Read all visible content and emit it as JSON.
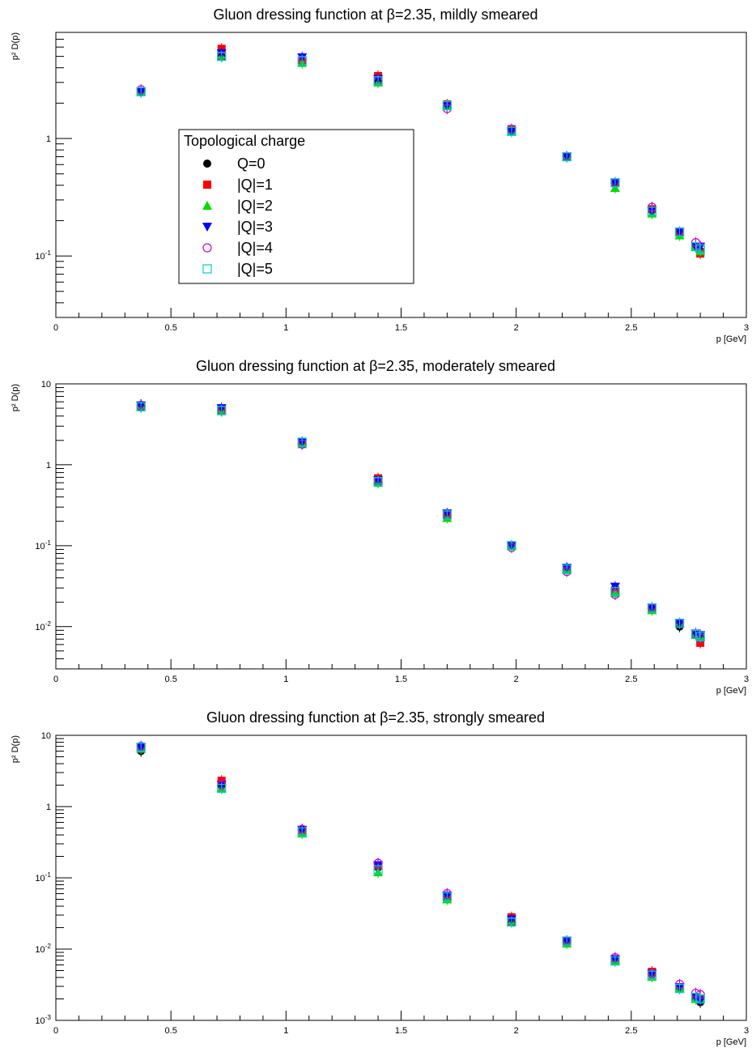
{
  "figure": {
    "series_styles": [
      {
        "name": "Q=0",
        "marker": "filled-circle",
        "color": "#000000"
      },
      {
        "name": "|Q|=1",
        "marker": "filled-square",
        "color": "#ff0000"
      },
      {
        "name": "|Q|=2",
        "marker": "filled-triangle-up",
        "color": "#00dd00"
      },
      {
        "name": "|Q|=3",
        "marker": "filled-triangle-down",
        "color": "#0000ff"
      },
      {
        "name": "|Q|=4",
        "marker": "open-circle",
        "color": "#cc00cc"
      },
      {
        "name": "|Q|=5",
        "marker": "open-square",
        "color": "#00cccc"
      }
    ],
    "legend": {
      "title": "Topological charge",
      "placement": "upper-left-center",
      "panel": 0
    }
  },
  "chart_data": [
    {
      "type": "scatter",
      "title": "Gluon dressing function at β=2.35, mildly smeared",
      "xlabel": "p [GeV]",
      "ylabel": "p² D(p)",
      "xlim": [
        0,
        3
      ],
      "ylim": [
        0.03,
        8
      ],
      "log_y": true,
      "xticks": [
        "0",
        "0.5",
        "1",
        "1.5",
        "2",
        "2.5",
        "3"
      ],
      "yticks": [
        "1",
        "10⁻¹"
      ],
      "x": [
        0.37,
        0.72,
        1.07,
        1.4,
        1.7,
        1.98,
        2.22,
        2.43,
        2.59,
        2.71,
        2.78,
        2.8
      ],
      "series": [
        {
          "name": "Q=0",
          "values": [
            2.5,
            5.2,
            4.6,
            3.1,
            1.9,
            1.15,
            0.7,
            0.42,
            0.25,
            0.16,
            0.12,
            0.11
          ]
        },
        {
          "name": "|Q|=1",
          "values": [
            2.5,
            5.8,
            4.5,
            3.4,
            1.95,
            1.2,
            0.7,
            0.42,
            0.25,
            0.16,
            0.12,
            0.105
          ]
        },
        {
          "name": "|Q|=2",
          "values": [
            2.5,
            5.0,
            4.4,
            3.0,
            1.9,
            1.15,
            0.7,
            0.38,
            0.23,
            0.15,
            0.12,
            0.11
          ]
        },
        {
          "name": "|Q|=3",
          "values": [
            2.5,
            5.3,
            4.9,
            3.2,
            1.9,
            1.15,
            0.7,
            0.42,
            0.24,
            0.16,
            0.12,
            0.12
          ]
        },
        {
          "name": "|Q|=4",
          "values": [
            2.6,
            5.0,
            4.6,
            3.1,
            1.8,
            1.2,
            0.7,
            0.42,
            0.26,
            0.16,
            0.13,
            0.12
          ]
        },
        {
          "name": "|Q|=5",
          "values": [
            2.5,
            5.0,
            4.6,
            3.1,
            1.9,
            1.15,
            0.7,
            0.42,
            0.24,
            0.16,
            0.12,
            0.115
          ]
        }
      ]
    },
    {
      "type": "scatter",
      "title": "Gluon dressing function at β=2.35, moderately smeared",
      "xlabel": "p [GeV]",
      "ylabel": "p² D(p)",
      "xlim": [
        0,
        3
      ],
      "ylim": [
        0.003,
        10
      ],
      "log_y": true,
      "xticks": [
        "0",
        "0.5",
        "1",
        "1.5",
        "2",
        "2.5",
        "3"
      ],
      "yticks": [
        "10",
        "1",
        "10⁻¹",
        "10⁻²"
      ],
      "x": [
        0.37,
        0.72,
        1.07,
        1.4,
        1.7,
        1.98,
        2.22,
        2.43,
        2.59,
        2.71,
        2.78,
        2.8
      ],
      "series": [
        {
          "name": "Q=0",
          "values": [
            5.5,
            4.7,
            1.9,
            0.62,
            0.24,
            0.1,
            0.052,
            0.028,
            0.017,
            0.01,
            0.008,
            0.0075
          ]
        },
        {
          "name": "|Q|=1",
          "values": [
            5.2,
            4.8,
            1.9,
            0.68,
            0.24,
            0.1,
            0.052,
            0.028,
            0.017,
            0.011,
            0.008,
            0.0063
          ]
        },
        {
          "name": "|Q|=2",
          "values": [
            5.2,
            4.6,
            1.8,
            0.6,
            0.22,
            0.1,
            0.05,
            0.026,
            0.016,
            0.011,
            0.008,
            0.0075
          ]
        },
        {
          "name": "|Q|=3",
          "values": [
            5.4,
            5.0,
            1.9,
            0.64,
            0.25,
            0.1,
            0.053,
            0.031,
            0.017,
            0.011,
            0.0082,
            0.0078
          ]
        },
        {
          "name": "|Q|=4",
          "values": [
            5.3,
            4.7,
            1.8,
            0.62,
            0.24,
            0.095,
            0.048,
            0.025,
            0.017,
            0.011,
            0.008,
            0.0072
          ]
        },
        {
          "name": "|Q|=5",
          "values": [
            5.2,
            4.7,
            1.9,
            0.62,
            0.24,
            0.1,
            0.051,
            0.027,
            0.017,
            0.011,
            0.008,
            0.0075
          ]
        }
      ]
    },
    {
      "type": "scatter",
      "title": "Gluon dressing function at β=2.35, strongly smeared",
      "xlabel": "p [GeV]",
      "ylabel": "p² D(p)",
      "xlim": [
        0,
        3
      ],
      "ylim": [
        0.001,
        10
      ],
      "log_y": true,
      "xticks": [
        "0",
        "0.5",
        "1",
        "1.5",
        "2",
        "2.5",
        "3"
      ],
      "yticks": [
        "10",
        "1",
        "10⁻¹",
        "10⁻²",
        "10⁻³"
      ],
      "x": [
        0.37,
        0.72,
        1.07,
        1.4,
        1.7,
        1.98,
        2.22,
        2.43,
        2.59,
        2.71,
        2.78,
        2.8
      ],
      "series": [
        {
          "name": "Q=0",
          "values": [
            6.0,
            2.0,
            0.44,
            0.14,
            0.052,
            0.025,
            0.013,
            0.0072,
            0.0045,
            0.0028,
            0.0021,
            0.0018
          ]
        },
        {
          "name": "|Q|=1",
          "values": [
            6.8,
            2.3,
            0.46,
            0.15,
            0.056,
            0.028,
            0.013,
            0.0072,
            0.0048,
            0.0029,
            0.0021,
            0.002
          ]
        },
        {
          "name": "|Q|=2",
          "values": [
            6.5,
            1.8,
            0.42,
            0.12,
            0.05,
            0.024,
            0.012,
            0.0068,
            0.0041,
            0.0028,
            0.002,
            0.002
          ]
        },
        {
          "name": "|Q|=3",
          "values": [
            6.8,
            2.0,
            0.47,
            0.15,
            0.056,
            0.026,
            0.013,
            0.0072,
            0.0045,
            0.0029,
            0.0021,
            0.0019
          ]
        },
        {
          "name": "|Q|=4",
          "values": [
            7.0,
            2.0,
            0.48,
            0.16,
            0.06,
            0.024,
            0.013,
            0.0076,
            0.0045,
            0.0032,
            0.0024,
            0.0023
          ]
        },
        {
          "name": "|Q|=5",
          "values": [
            6.8,
            1.8,
            0.44,
            0.13,
            0.054,
            0.024,
            0.013,
            0.0068,
            0.0043,
            0.0028,
            0.0021,
            0.002
          ]
        }
      ]
    }
  ]
}
